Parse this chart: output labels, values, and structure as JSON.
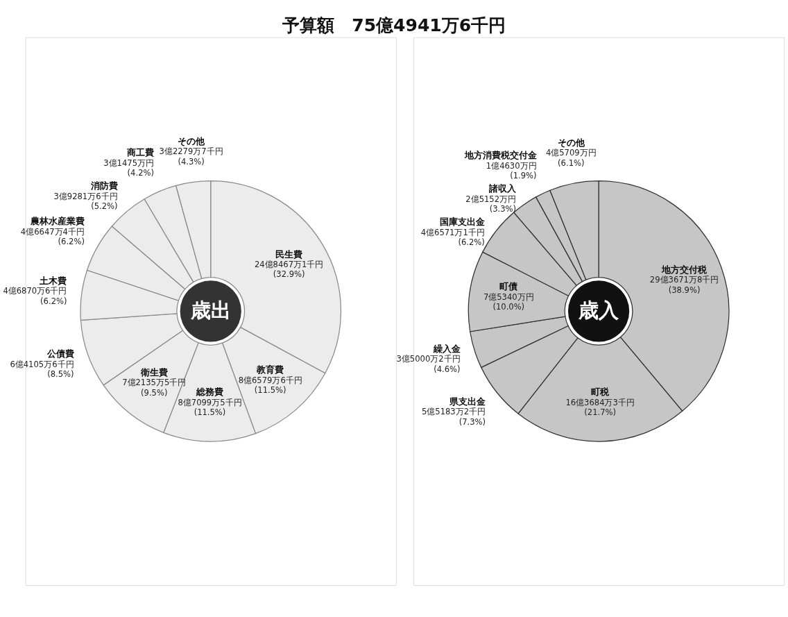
{
  "chart_data": [
    {
      "type": "donut",
      "title": "予算額　75億4941万6千円",
      "annotations": [
        "歳出"
      ],
      "categories": [
        "民生費",
        "教育費",
        "総務費",
        "衛生費",
        "公債費",
        "土木費",
        "農林水産業費",
        "消防費",
        "商工費",
        "その他"
      ],
      "values": [
        32.9,
        11.5,
        11.5,
        9.5,
        8.5,
        6.2,
        6.2,
        5.2,
        4.2,
        4.3
      ],
      "value_labels": [
        "24億8467万1千円\n(32.9%)",
        "8億6579万6千円\n(11.5%)",
        "8億7099万5千円\n(11.5%)",
        "7億2135万5千円\n(9.5%)",
        "6億4105万6千円\n(8.5%)",
        "4億6870万6千円\n(6.2%)",
        "4億6647万4千円\n(6.2%)",
        "3億9281万6千円\n(5.2%)",
        "3億1475万円\n(4.2%)",
        "3億2279万7千円\n(4.3%)"
      ],
      "colors": [
        "#ececec",
        "#ececec",
        "#ececec",
        "#ececec",
        "#ececec",
        "#ececec",
        "#ececec",
        "#ececec",
        "#ececec",
        "#ececec"
      ]
    },
    {
      "type": "donut",
      "annotations": [
        "歳入"
      ],
      "categories": [
        "地方交付税",
        "町税",
        "県支出金",
        "繰入金",
        "町債",
        "国庫支出金",
        "諸収入",
        "地方消費税交付金",
        "その他"
      ],
      "values": [
        38.9,
        21.7,
        7.3,
        4.6,
        10.0,
        6.2,
        3.3,
        1.9,
        6.1
      ],
      "value_labels": [
        "29億3671万8千円\n(38.9%)",
        "16億3684万3千円\n(21.7%)",
        "5億5183万2千円\n(7.3%)",
        "3億5000万2千円\n(4.6%)",
        "7億5340万円\n(10.0%)",
        "4億6571万1千円\n(6.2%)",
        "2億5152万円\n(3.3%)",
        "1億4630万円\n(1.9%)",
        "4億5709万円\n(6.1%)"
      ],
      "colors": [
        "#c6c6c6",
        "#c6c6c6",
        "#c6c6c6",
        "#c6c6c6",
        "#c6c6c6",
        "#c6c6c6",
        "#c6c6c6",
        "#c6c6c6",
        "#c6c6c6"
      ]
    }
  ]
}
